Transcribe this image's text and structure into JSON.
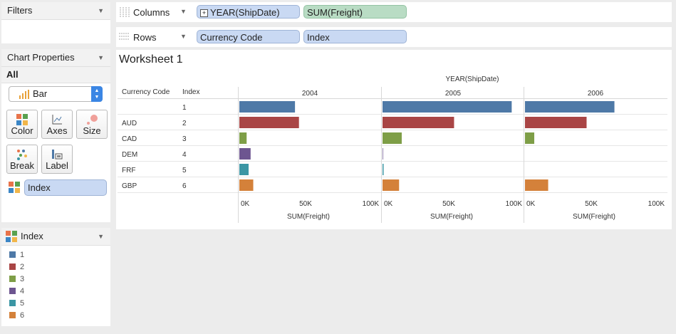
{
  "filters": {
    "title": "Filters"
  },
  "chart_properties": {
    "title": "Chart Properties",
    "tab_all": "All",
    "mark_type": "Bar",
    "buttons": {
      "color": "Color",
      "axes": "Axes",
      "size": "Size",
      "break": "Break",
      "label": "Label"
    },
    "color_field": "Index"
  },
  "legend": {
    "title": "Index",
    "items": [
      {
        "label": "1",
        "color": "#4e79a7"
      },
      {
        "label": "2",
        "color": "#a94545"
      },
      {
        "label": "3",
        "color": "#7e9e47"
      },
      {
        "label": "4",
        "color": "#6d5590"
      },
      {
        "label": "5",
        "color": "#3b96a4"
      },
      {
        "label": "6",
        "color": "#d4813a"
      }
    ]
  },
  "shelves": {
    "columns": {
      "label": "Columns",
      "pills": [
        "YEAR(ShipDate)",
        "SUM(Freight)"
      ]
    },
    "rows": {
      "label": "Rows",
      "pills": [
        "Currency Code",
        "Index"
      ]
    }
  },
  "worksheet": {
    "title": "Worksheet 1"
  },
  "chart_data": {
    "type": "bar",
    "column_header": "YEAR(ShipDate)",
    "row_headers": [
      "Currency Code",
      "Index"
    ],
    "rows": [
      {
        "currency": "",
        "index": "1"
      },
      {
        "currency": "AUD",
        "index": "2"
      },
      {
        "currency": "CAD",
        "index": "3"
      },
      {
        "currency": "DEM",
        "index": "4"
      },
      {
        "currency": "FRF",
        "index": "5"
      },
      {
        "currency": "GBP",
        "index": "6"
      }
    ],
    "panes": [
      {
        "year": "2004",
        "values": [
          42000,
          45000,
          5500,
          8500,
          7000,
          10500
        ]
      },
      {
        "year": "2005",
        "values": [
          97500,
          54000,
          14500,
          400,
          800,
          12500
        ]
      },
      {
        "year": "2006",
        "values": [
          67500,
          46500,
          7000,
          0,
          0,
          17500
        ]
      }
    ],
    "xlim": [
      0,
      100000
    ],
    "ticks": [
      "0K",
      "50K",
      "100K"
    ],
    "xlabel": "SUM(Freight)",
    "colors": [
      "#4e79a7",
      "#a94545",
      "#7e9e47",
      "#6d5590",
      "#3b96a4",
      "#d4813a"
    ]
  }
}
